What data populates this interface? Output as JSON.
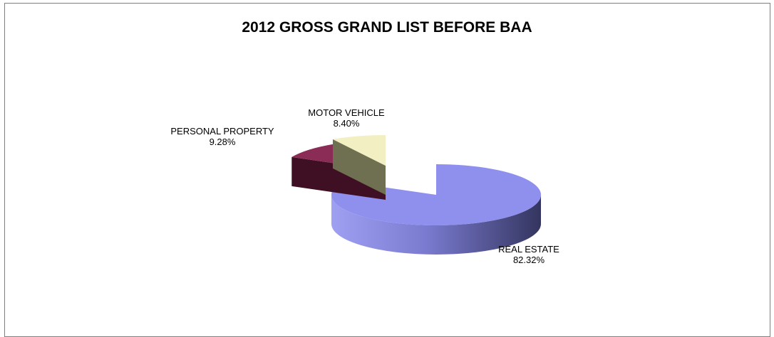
{
  "chart_data": {
    "type": "pie",
    "title": "2012 GROSS GRAND LIST BEFORE BAA",
    "style": "3d-exploded",
    "categories": [
      "REAL ESTATE",
      "PERSONAL PROPERTY",
      "MOTOR VEHICLE"
    ],
    "values": [
      82.32,
      9.28,
      8.4
    ],
    "value_labels": [
      "82.32%",
      "9.28%",
      "8.40%"
    ],
    "colors": {
      "REAL ESTATE": "#8f90ee",
      "PERSONAL PROPERTY": "#8b2c57",
      "MOTOR VEHICLE": "#f2efc2"
    },
    "side_colors": {
      "REAL ESTATE": "#3d3e72",
      "PERSONAL PROPERTY": "#3f1023",
      "MOTOR VEHICLE": "#6f6f52"
    },
    "legend": "none"
  }
}
